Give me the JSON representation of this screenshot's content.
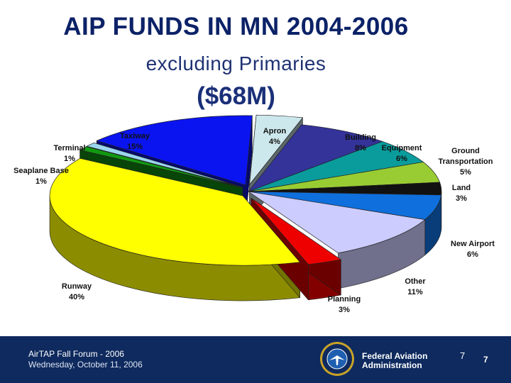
{
  "header": {
    "title": "AIP FUNDS IN MN 2004-2006",
    "subtitle": "excluding Primaries",
    "amount": "($68M)"
  },
  "chart_data": {
    "type": "pie",
    "title": "AIP FUNDS IN MN 2004-2006",
    "subtitle": "excluding Primaries",
    "slices": [
      {
        "label": "Apron",
        "line1": "Apron",
        "line2": "4%",
        "value": 4,
        "color": "#cde8ec",
        "exploded": true
      },
      {
        "label": "Building",
        "line1": "Building",
        "line2": "8%",
        "value": 8,
        "color": "#33339a",
        "exploded": false
      },
      {
        "label": "Equipment",
        "line1": "Equipment",
        "line2": "6%",
        "value": 6,
        "color": "#0a9c9c",
        "exploded": false
      },
      {
        "label": "Ground Transportation",
        "line1": "Ground",
        "line1b": "Transportation",
        "line2": "5%",
        "value": 5,
        "color": "#99cc33",
        "exploded": false
      },
      {
        "label": "Land",
        "line1": "Land",
        "line2": "3%",
        "value": 3,
        "color": "#111111",
        "exploded": false
      },
      {
        "label": "New Airport",
        "line1": "New Airport",
        "line2": "6%",
        "value": 6,
        "color": "#0f6fdc",
        "exploded": false
      },
      {
        "label": "Other",
        "line1": "Other",
        "line2": "11%",
        "value": 11,
        "color": "#ccccff",
        "exploded": false
      },
      {
        "label": "Planning",
        "line1": "Planning",
        "line2": "3%",
        "value": 3,
        "color": "#ee0000",
        "exploded": true
      },
      {
        "label": "Runway",
        "line1": "Runway",
        "line2": "40%",
        "value": 40,
        "color": "#ffff00",
        "exploded": true
      },
      {
        "label": "Seaplane Base",
        "line1": "Seaplane Base",
        "line2": "1%",
        "value": 1,
        "color": "#119911",
        "exploded": true
      },
      {
        "label": "Terminal",
        "line1": "Terminal",
        "line2": "1%",
        "value": 1,
        "color": "#9ad6ee",
        "exploded": true
      },
      {
        "label": "Taxiway",
        "line1": "Taxiway",
        "line2": "15%",
        "value": 15,
        "color": "#0a14f0",
        "exploded": true
      }
    ]
  },
  "footer": {
    "event": "AirTAP Fall Forum - 2006",
    "date": "Wednesday, October 11, 2006",
    "agency_line1": "Federal Aviation",
    "agency_line2": "Administration",
    "page_small": "7",
    "page_bold": "7"
  }
}
